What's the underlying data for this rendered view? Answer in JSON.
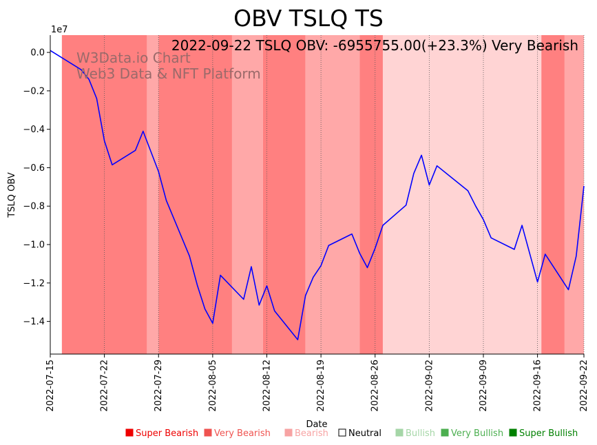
{
  "chart_data": {
    "type": "line",
    "title": "OBV TSLQ TS",
    "xlabel": "Date",
    "ylabel": "TSLQ OBV",
    "y_scale_label": "1e7",
    "annotation": "2022-09-22 TSLQ OBV: -6955755.00(+23.3%) Very Bearish",
    "watermark": [
      "W3Data.io Chart",
      "Web3 Data & NFT Platform"
    ],
    "x_start": "2022-07-15",
    "x_end": "2022-09-22",
    "xlim_days": [
      0,
      69
    ],
    "ylim": [
      -1.57,
      0.09
    ],
    "x_ticks": [
      {
        "day": 0,
        "label": "2022-07-15"
      },
      {
        "day": 7,
        "label": "2022-07-22"
      },
      {
        "day": 14,
        "label": "2022-07-29"
      },
      {
        "day": 21,
        "label": "2022-08-05"
      },
      {
        "day": 28,
        "label": "2022-08-12"
      },
      {
        "day": 35,
        "label": "2022-08-19"
      },
      {
        "day": 42,
        "label": "2022-08-26"
      },
      {
        "day": 49,
        "label": "2022-09-02"
      },
      {
        "day": 56,
        "label": "2022-09-09"
      },
      {
        "day": 63,
        "label": "2022-09-16"
      },
      {
        "day": 69,
        "label": "2022-09-22"
      }
    ],
    "y_ticks": [
      {
        "value": 0.0,
        "label": "0.0"
      },
      {
        "value": -0.2,
        "label": "−0.2"
      },
      {
        "value": -0.4,
        "label": "−0.4"
      },
      {
        "value": -0.6,
        "label": "−0.6"
      },
      {
        "value": -0.8,
        "label": "−0.8"
      },
      {
        "value": -1.0,
        "label": "−1.0"
      },
      {
        "value": -1.2,
        "label": "−1.2"
      },
      {
        "value": -1.4,
        "label": "−1.4"
      }
    ],
    "series": [
      {
        "name": "TSLQ OBV",
        "color": "#0000ff",
        "points": [
          [
            0,
            0.01
          ],
          [
            4,
            -0.09
          ],
          [
            5,
            -0.14
          ],
          [
            6,
            -0.24
          ],
          [
            7,
            -0.46
          ],
          [
            8,
            -0.585
          ],
          [
            11,
            -0.51
          ],
          [
            12,
            -0.41
          ],
          [
            14,
            -0.62
          ],
          [
            15,
            -0.77
          ],
          [
            18,
            -1.06
          ],
          [
            19,
            -1.21
          ],
          [
            20,
            -1.335
          ],
          [
            21,
            -1.41
          ],
          [
            22,
            -1.16
          ],
          [
            25,
            -1.285
          ],
          [
            26,
            -1.115
          ],
          [
            27,
            -1.315
          ],
          [
            28,
            -1.215
          ],
          [
            29,
            -1.345
          ],
          [
            32,
            -1.495
          ],
          [
            33,
            -1.265
          ],
          [
            34,
            -1.17
          ],
          [
            35,
            -1.11
          ],
          [
            36,
            -1.005
          ],
          [
            39,
            -0.945
          ],
          [
            40,
            -1.045
          ],
          [
            41,
            -1.12
          ],
          [
            42,
            -1.02
          ],
          [
            43,
            -0.9
          ],
          [
            46,
            -0.795
          ],
          [
            47,
            -0.63
          ],
          [
            48,
            -0.535
          ],
          [
            49,
            -0.69
          ],
          [
            50,
            -0.59
          ],
          [
            54,
            -0.72
          ],
          [
            55,
            -0.8
          ],
          [
            56,
            -0.87
          ],
          [
            57,
            -0.965
          ],
          [
            60,
            -1.025
          ],
          [
            61,
            -0.9
          ],
          [
            63,
            -1.195
          ],
          [
            64,
            -1.05
          ],
          [
            67,
            -1.235
          ],
          [
            68,
            -1.06
          ],
          [
            69,
            -0.695
          ]
        ]
      }
    ],
    "sentiment_bands": [
      {
        "from": 1.5,
        "to": 12.5,
        "level": "Super Bearish"
      },
      {
        "from": 12.5,
        "to": 14,
        "level": "Bearish"
      },
      {
        "from": 14,
        "to": 23.5,
        "level": "Super Bearish"
      },
      {
        "from": 23.5,
        "to": 27.5,
        "level": "Bearish"
      },
      {
        "from": 27.5,
        "to": 33,
        "level": "Super Bearish"
      },
      {
        "from": 33,
        "to": 40,
        "level": "Bearish"
      },
      {
        "from": 40,
        "to": 43,
        "level": "Super Bearish"
      },
      {
        "from": 43,
        "to": 63.5,
        "level": "Neutral-pink"
      },
      {
        "from": 63.5,
        "to": 66.5,
        "level": "Super Bearish"
      },
      {
        "from": 66.5,
        "to": 69,
        "level": "Bearish"
      }
    ],
    "band_colors": {
      "Super Bearish": "#ff8080",
      "Bearish": "#ffa8a8",
      "Neutral-pink": "#ffd4d4"
    },
    "legend": [
      {
        "label": "Super Bearish",
        "color": "#ee0000"
      },
      {
        "label": "Very Bearish",
        "color": "#ef5350"
      },
      {
        "label": "Bearish",
        "color": "#f7a3a3"
      },
      {
        "label": "Neutral",
        "color": "#000000",
        "hollow": true
      },
      {
        "label": "Bullish",
        "color": "#a5d6a7"
      },
      {
        "label": "Very Bullish",
        "color": "#4caf50"
      },
      {
        "label": "Super Bullish",
        "color": "#008000"
      }
    ]
  }
}
